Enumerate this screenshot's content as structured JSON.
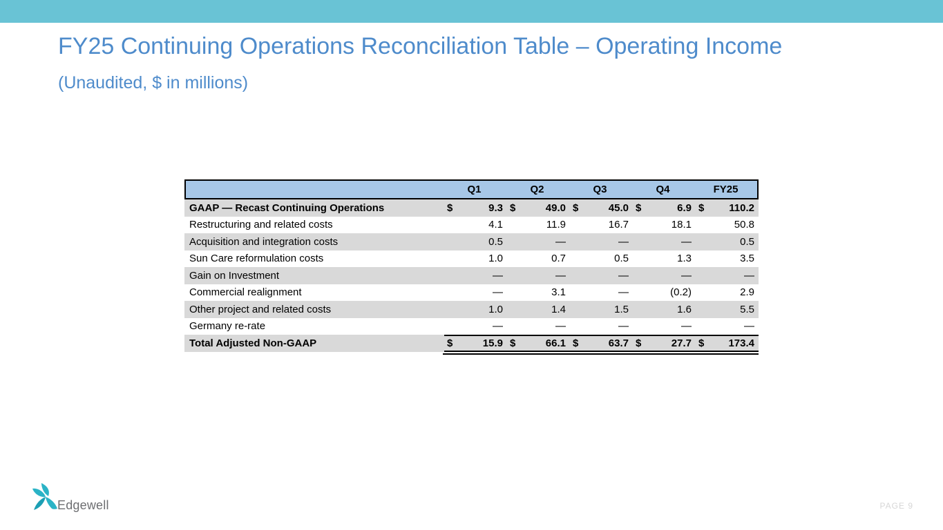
{
  "slide": {
    "title": "FY25 Continuing Operations Reconciliation Table – Operating Income",
    "subtitle": "(Unaudited, $ in millions)",
    "page_label": "PAGE 9",
    "logo_text": "Edgewell"
  },
  "table": {
    "currency_symbol": "$",
    "columns": [
      "Q1",
      "Q2",
      "Q3",
      "Q4",
      "FY25"
    ],
    "rows": [
      {
        "label": "GAAP — Recast Continuing Operations",
        "bold": true,
        "currency": true,
        "values": [
          "9.3",
          "49.0",
          "45.0",
          "6.9",
          "110.2"
        ]
      },
      {
        "label": "Restructuring and related costs",
        "values": [
          "4.1",
          "11.9",
          "16.7",
          "18.1",
          "50.8"
        ]
      },
      {
        "label": "Acquisition and integration costs",
        "values": [
          "0.5",
          "—",
          "—",
          "—",
          "0.5"
        ]
      },
      {
        "label": "Sun Care reformulation costs",
        "values": [
          "1.0",
          "0.7",
          "0.5",
          "1.3",
          "3.5"
        ]
      },
      {
        "label": "Gain on Investment",
        "values": [
          "—",
          "—",
          "—",
          "—",
          "—"
        ]
      },
      {
        "label": "Commercial realignment",
        "values": [
          "—",
          "3.1",
          "—",
          "(0.2)",
          "2.9"
        ]
      },
      {
        "label": "Other project and related costs",
        "values": [
          "1.0",
          "1.4",
          "1.5",
          "1.6",
          "5.5"
        ]
      },
      {
        "label": "Germany re-rate",
        "values": [
          "—",
          "—",
          "—",
          "—",
          "—"
        ]
      },
      {
        "label": "Total Adjusted Non-GAAP",
        "bold": true,
        "currency": true,
        "total": true,
        "values": [
          "15.9",
          "66.1",
          "63.7",
          "27.7",
          "173.4"
        ]
      }
    ]
  },
  "colors": {
    "top_bar": "#69C3D5",
    "title_text": "#4E8BCB",
    "table_header_fill": "#A7C7E7",
    "row_stripe": "#D9D9D9",
    "logo_teal": "#2BB3C6",
    "logo_text": "#6D6E71",
    "page_label": "#D6D6D6"
  }
}
